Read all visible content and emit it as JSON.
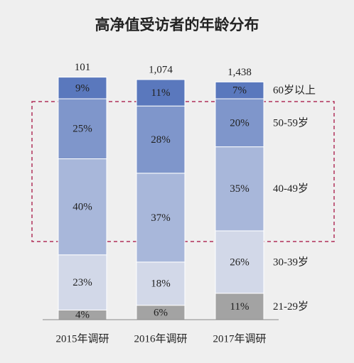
{
  "chart_data": {
    "type": "stacked-bar",
    "title": "高净值受访者的年龄分布",
    "categories": [
      "2015年调研",
      "2016年调研",
      "2017年调研"
    ],
    "totals": {
      "values": [
        101,
        1074,
        1438
      ],
      "value_labels": [
        "101",
        "1,074",
        "1,438"
      ]
    },
    "series": [
      {
        "name": "21-29岁",
        "color": "#a3a3a3",
        "values": [
          4,
          6,
          11
        ],
        "value_labels": [
          "4%",
          "6%",
          "11%"
        ]
      },
      {
        "name": "30-39岁",
        "color": "#d2d8e8",
        "values": [
          23,
          18,
          26
        ],
        "value_labels": [
          "23%",
          "18%",
          "26%"
        ]
      },
      {
        "name": "40-49岁",
        "color": "#a8b7da",
        "values": [
          40,
          37,
          35
        ],
        "value_labels": [
          "40%",
          "37%",
          "35%"
        ]
      },
      {
        "name": "50-59岁",
        "color": "#7f96cb",
        "values": [
          25,
          28,
          20
        ],
        "value_labels": [
          "25%",
          "28%",
          "20%"
        ]
      },
      {
        "name": "60岁以上",
        "color": "#5a78bd",
        "values": [
          9,
          11,
          7
        ],
        "value_labels": [
          "9%",
          "11%",
          "7%"
        ]
      }
    ],
    "ylim": [
      0,
      100
    ]
  }
}
